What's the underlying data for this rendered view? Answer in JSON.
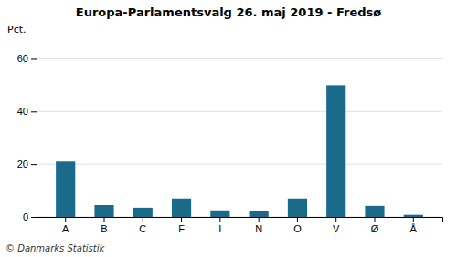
{
  "chart_data": {
    "type": "bar",
    "title": "Europa-Parlamentsvalg 26. maj 2019 - Fredsø",
    "ylabel": "Pct.",
    "annotations": [
      "© Danmarks Statistik"
    ],
    "categories": [
      "A",
      "B",
      "C",
      "F",
      "I",
      "N",
      "O",
      "V",
      "Ø",
      "Å"
    ],
    "values": [
      21.0,
      4.5,
      3.5,
      7.0,
      2.5,
      2.2,
      7.0,
      50.0,
      4.2,
      0.8
    ],
    "color": "#1a6b8a",
    "ylim": [
      0,
      65
    ],
    "yticks": [
      0,
      20,
      40,
      60
    ],
    "grid": true
  }
}
